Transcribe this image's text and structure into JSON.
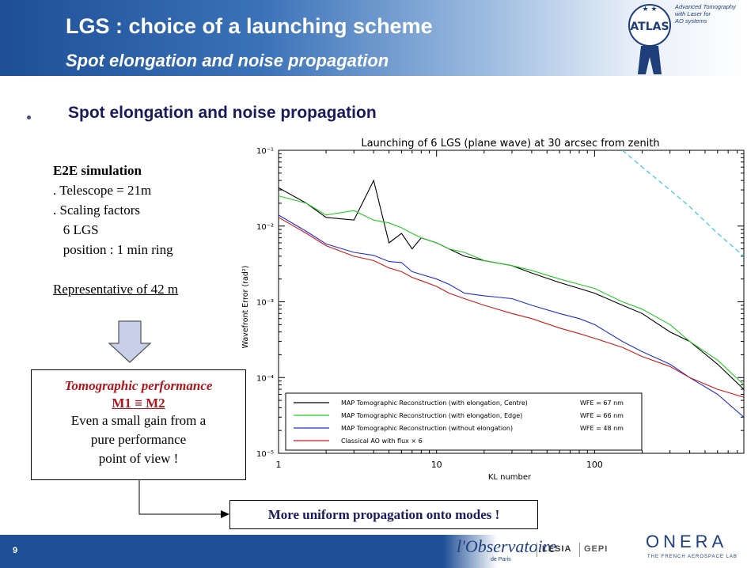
{
  "header": {
    "title": "LGS : choice of a launching scheme",
    "subtitle": "Spot elongation and noise propagation",
    "logo_text": "ATLAS",
    "logo_caption": [
      "Advanced Tomography",
      "with Laser for",
      "AO systems"
    ]
  },
  "bullet": {
    "text": "Spot elongation  and noise propagation"
  },
  "e2e": {
    "lines": [
      "E2E simulation",
      ". Telescope = 21m",
      ". Scaling factors",
      "   6 LGS",
      "   position : 1 min ring"
    ],
    "note": "Representative of 42 m"
  },
  "performance_box": {
    "title": "Tomographic performance",
    "equiv": "M1  ≡  M2",
    "lines": [
      "Even a small gain from a",
      "pure performance",
      "point of view !"
    ]
  },
  "conclusion": "More uniform propagation onto modes !",
  "footer": {
    "page": "9",
    "obs_logo": "l'Observatoire",
    "obs_sub": "de Paris",
    "lesia": "LESIA",
    "gepi": "GEPI",
    "onera": "ONERA",
    "onera_sub": "THE FRENCH AEROSPACE LAB"
  },
  "colors": {
    "header_blue": "#1e4f95",
    "accent_red": "#b0161b"
  },
  "chart_data": {
    "type": "line",
    "title": "Launching of 6 LGS (plane wave) at 30 arcsec from zenith",
    "xlabel": "KL number",
    "ylabel": "Wavefront Error (rad²)",
    "xscale": "log",
    "yscale": "log",
    "xlim": [
      1,
      880
    ],
    "ylim": [
      1e-05,
      0.1
    ],
    "x_ticks": [
      "1",
      "10",
      "100"
    ],
    "y_ticks": [
      "10⁻¹",
      "10⁻²",
      "10⁻³",
      "10⁻⁴",
      "10⁻⁵"
    ],
    "legend_position": "bottom-center",
    "series": [
      {
        "name": "MAP Tomographic Reconstruction (with elongation, Centre)",
        "wfe": "WFE = 67 nm",
        "color": "#000000",
        "x": [
          1,
          1.5,
          2,
          3,
          4,
          5,
          6,
          7,
          8,
          10,
          12,
          15,
          20,
          30,
          40,
          60,
          80,
          100,
          150,
          200,
          300,
          400,
          600,
          880
        ],
        "y": [
          0.032,
          0.02,
          0.013,
          0.012,
          0.04,
          0.006,
          0.008,
          0.005,
          0.007,
          0.006,
          0.005,
          0.004,
          0.0035,
          0.003,
          0.0024,
          0.0018,
          0.0015,
          0.0013,
          0.0009,
          0.0007,
          0.0004,
          0.0003,
          0.00015,
          7e-05
        ]
      },
      {
        "name": "MAP Tomographic Reconstruction (with elongation, Edge)",
        "wfe": "WFE = 66 nm",
        "color": "#22cc22",
        "x": [
          1,
          1.5,
          2,
          3,
          4,
          5,
          6,
          7,
          8,
          10,
          12,
          15,
          20,
          30,
          40,
          60,
          80,
          100,
          150,
          200,
          300,
          400,
          600,
          880
        ],
        "y": [
          0.025,
          0.02,
          0.014,
          0.016,
          0.012,
          0.011,
          0.0095,
          0.008,
          0.007,
          0.006,
          0.005,
          0.0045,
          0.0035,
          0.003,
          0.0026,
          0.002,
          0.0017,
          0.0015,
          0.001,
          0.0008,
          0.0005,
          0.0003,
          0.00017,
          8e-05
        ]
      },
      {
        "name": "MAP Tomographic Reconstruction (without elongation)",
        "wfe": "WFE = 48 nm",
        "color": "#1f2fd0",
        "x": [
          1,
          1.5,
          2,
          3,
          4,
          5,
          6,
          7,
          8,
          10,
          12,
          15,
          20,
          30,
          40,
          60,
          80,
          100,
          150,
          200,
          300,
          400,
          600,
          880
        ],
        "y": [
          0.014,
          0.0085,
          0.0058,
          0.0045,
          0.0041,
          0.0034,
          0.0033,
          0.0025,
          0.0023,
          0.002,
          0.0017,
          0.0013,
          0.0012,
          0.0011,
          0.0009,
          0.0007,
          0.0006,
          0.0005,
          0.0003,
          0.00022,
          0.00015,
          0.0001,
          6e-05,
          3e-05
        ]
      },
      {
        "name": "Classical AO with flux × 6",
        "wfe": "",
        "color": "#d01818",
        "x": [
          1,
          1.5,
          2,
          3,
          4,
          5,
          6,
          7,
          8,
          10,
          12,
          15,
          20,
          30,
          40,
          60,
          80,
          100,
          150,
          200,
          300,
          400,
          600,
          880
        ],
        "y": [
          0.013,
          0.008,
          0.0055,
          0.004,
          0.0035,
          0.0028,
          0.0025,
          0.0021,
          0.0019,
          0.0016,
          0.0013,
          0.0011,
          0.0009,
          0.0007,
          0.0006,
          0.00045,
          0.00038,
          0.00033,
          0.00025,
          0.00019,
          0.00014,
          0.0001,
          7e-05,
          5.5e-05
        ]
      },
      {
        "name": "",
        "wfe": "",
        "color": "#22c7e8",
        "dashed": true,
        "x": [
          150,
          200,
          300,
          400,
          600,
          880
        ],
        "y": [
          0.1,
          0.06,
          0.03,
          0.018,
          0.008,
          0.004
        ]
      }
    ]
  }
}
